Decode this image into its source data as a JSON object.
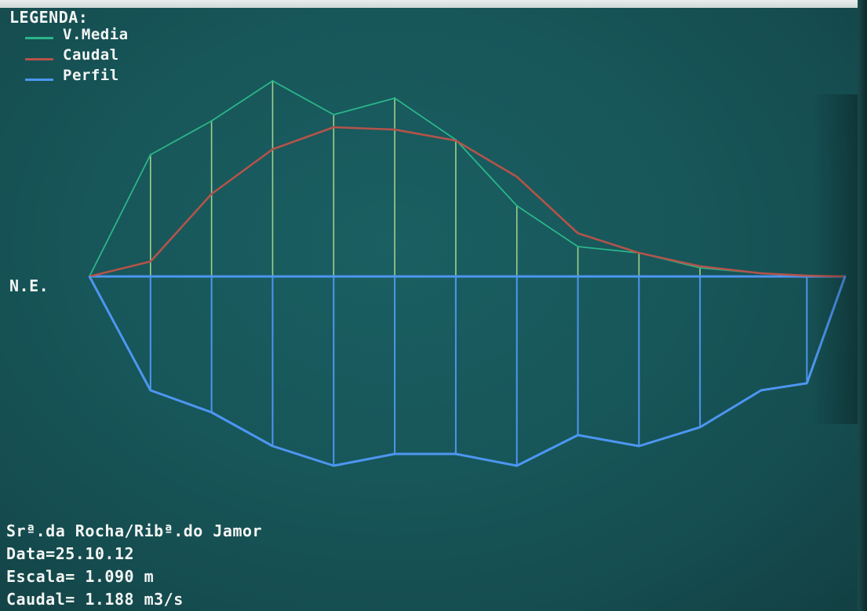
{
  "legend": {
    "title": "LEGENDA:",
    "items": [
      {
        "label": "V.Media",
        "color": "#2bb58a"
      },
      {
        "label": "Caudal",
        "color": "#b4534a"
      },
      {
        "label": "Perfil",
        "color": "#4d96f0"
      }
    ]
  },
  "water_level_label": "N.E.",
  "info": {
    "station": "Srª.da Rocha/Ribª.do Jamor",
    "date": "Data=25.10.12",
    "scale": "Escala= 1.090 m",
    "discharge": "Caudal= 1.188 m3/s"
  },
  "chart_data": {
    "type": "line",
    "title": "",
    "xlabel": "",
    "ylabel": "",
    "x": [
      0.0,
      0.8,
      1.6,
      2.4,
      3.2,
      4.0,
      4.8,
      5.6,
      6.4,
      7.2,
      8.0,
      8.8,
      9.4,
      9.9
    ],
    "series": [
      {
        "name": "V.Media",
        "values": [
          0.0,
          1.55,
          1.98,
          2.49,
          2.06,
          2.27,
          1.74,
          0.9,
          0.38,
          0.3,
          0.11,
          0.04,
          0.01,
          0.0
        ]
      },
      {
        "name": "Caudal",
        "values": [
          0.0,
          0.19,
          1.05,
          1.62,
          1.9,
          1.87,
          1.73,
          1.27,
          0.55,
          0.3,
          0.13,
          0.04,
          0.01,
          0.0
        ]
      },
      {
        "name": "Perfil",
        "values": [
          0.0,
          -1.45,
          -1.73,
          -2.16,
          -2.41,
          -2.26,
          -2.26,
          -2.41,
          -2.02,
          -2.16,
          -1.92,
          -1.45,
          -1.36,
          0.0
        ]
      }
    ],
    "verticals_x": [
      0.8,
      1.6,
      2.4,
      3.2,
      4.0,
      4.8,
      5.6,
      6.4,
      7.2,
      8.0,
      9.4
    ],
    "grid": false,
    "legend": "top-left"
  }
}
